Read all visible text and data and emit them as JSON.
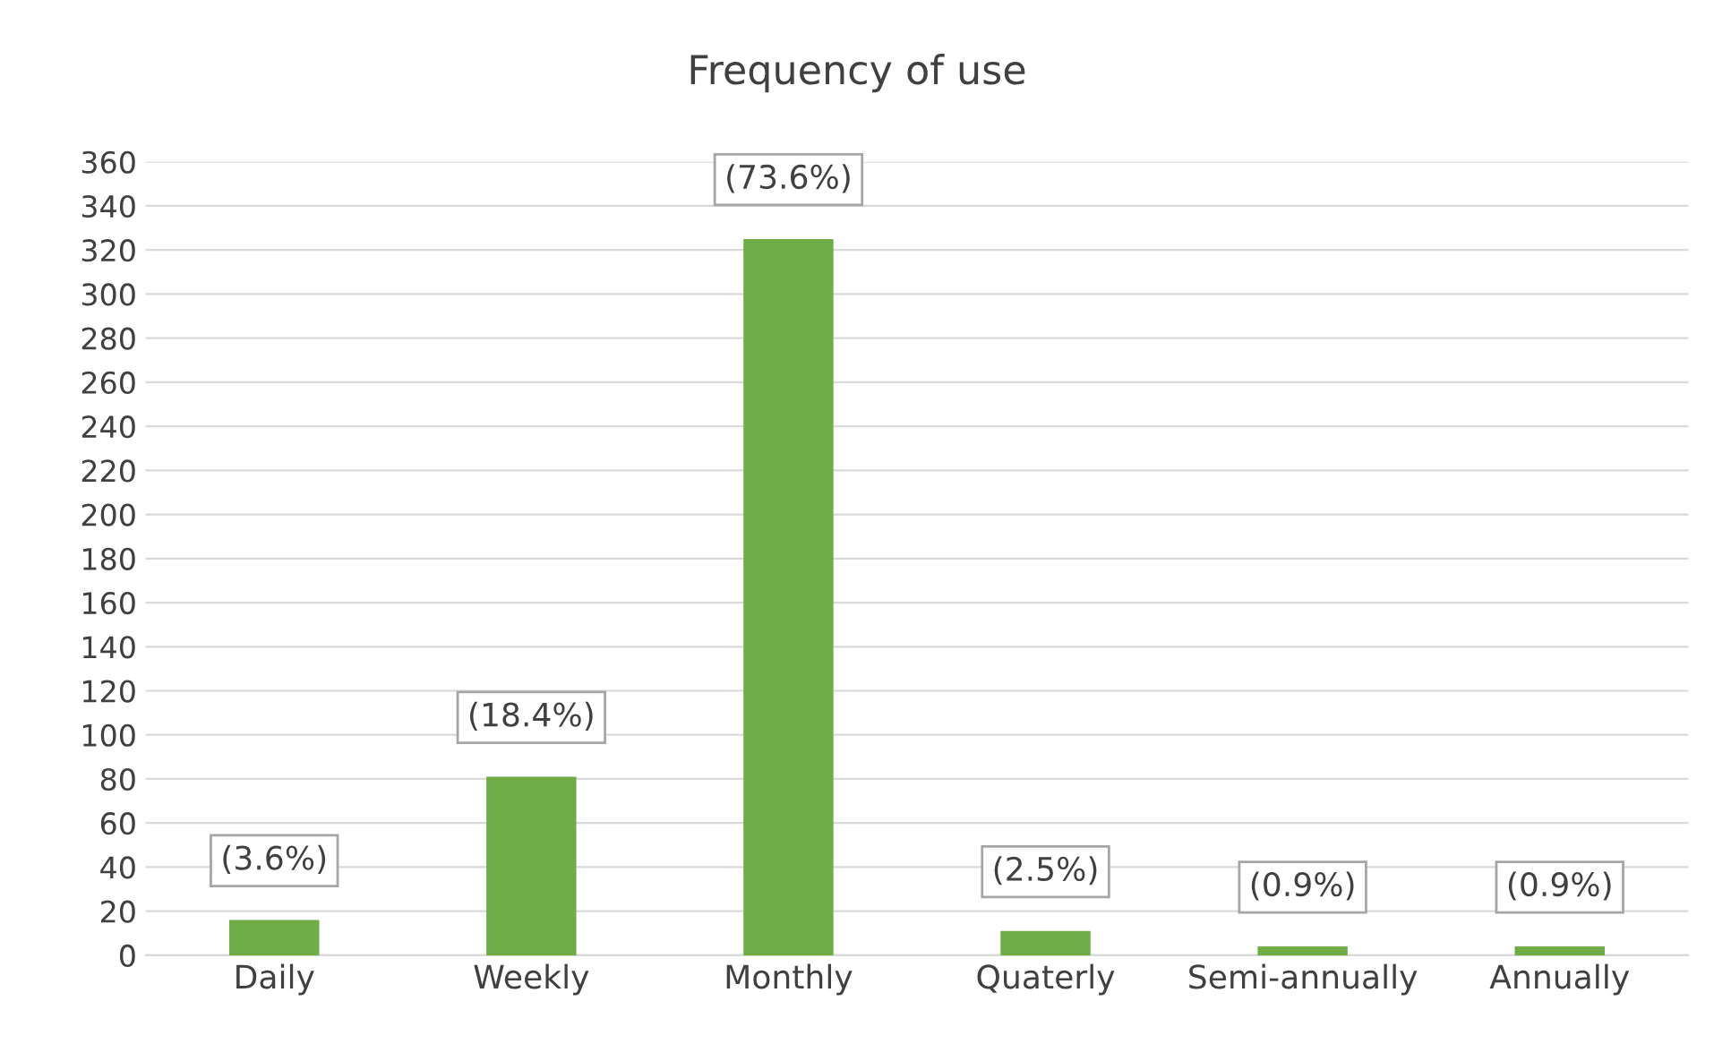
{
  "chart_data": {
    "type": "bar",
    "title": "Frequency of use",
    "categories": [
      "Daily",
      "Weekly",
      "Monthly",
      "Quaterly",
      "Semi-annually",
      "Annually"
    ],
    "values": [
      16,
      81,
      325,
      11,
      4,
      4
    ],
    "color": "#70ad47",
    "annotations": [
      {
        "text": "(3.6%)",
        "x": "Daily",
        "y": 16
      },
      {
        "text": "(18.4%)",
        "x": "Weekly",
        "y": 81
      },
      {
        "text": "(73.6%)",
        "x": "Monthly",
        "y": 325
      },
      {
        "text": "(2.5%)",
        "x": "Quaterly",
        "y": 11
      },
      {
        "text": "(0.9%)",
        "x": "Semi-annually",
        "y": 4
      },
      {
        "text": "(0.9%)",
        "x": "Annually",
        "y": 4
      }
    ],
    "ylim": [
      0,
      360
    ],
    "yticks": [
      0,
      20,
      40,
      60,
      80,
      100,
      120,
      140,
      160,
      180,
      200,
      220,
      240,
      260,
      280,
      300,
      320,
      340,
      360
    ],
    "grid": "y",
    "legend": false
  }
}
